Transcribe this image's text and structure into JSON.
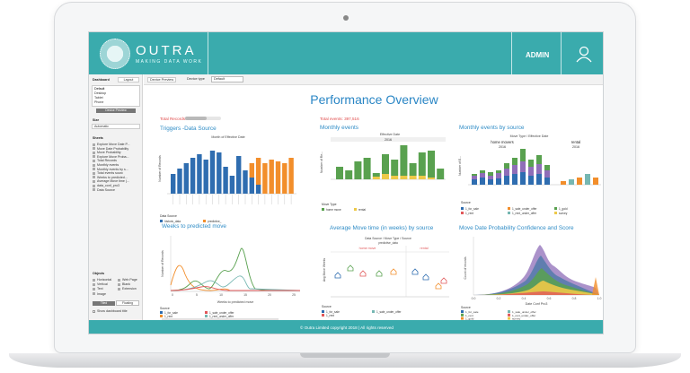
{
  "brand": {
    "name": "OUTRA",
    "tagline": "MAKING DATA WORK"
  },
  "header": {
    "user": "ADMIN"
  },
  "sidebar": {
    "dashboard_label": "Dashboard",
    "layout_label": "Layout",
    "devices": [
      "Default",
      "Desktop",
      "Tablet",
      "Phone"
    ],
    "device_preview": "Device Preview",
    "size_label": "Size",
    "size_value": "Automatic",
    "sheets_label": "Sheets",
    "sheets": [
      "Explore Move Date P...",
      "Move Date Probability",
      "Move Probability",
      "Explore Move Proba...",
      "Total Records",
      "Monthly events",
      "Monthly events by s...",
      "Total events sourc",
      "Weeks to predicted...",
      "Average Move time (...",
      "data_conf_pro3",
      "Data Source"
    ],
    "objects_label": "Objects",
    "objects": [
      "Horizontal",
      "Web Page",
      "Vertical",
      "Blank",
      "Text",
      "Extension",
      "Image"
    ],
    "tiled": "Tiled",
    "floating": "Floating",
    "show_title": "Show dashboard title"
  },
  "toolbar": {
    "device_preview": "Device Preview",
    "device_type_label": "Device type",
    "device_type_value": "Default"
  },
  "main": {
    "title": "Performance Overview",
    "total_records": "Total Records:",
    "total_events": "Total events: 397,516"
  },
  "charts": {
    "triggers": {
      "title": "Triggers -Data Source",
      "sub": "Month of Effective Date",
      "legend_title": "Data Source",
      "legend": [
        "historic_data",
        "predictive_"
      ]
    },
    "monthly": {
      "title": "Monthly events",
      "sub": "Effective Date",
      "year": "2016",
      "legend_title": "Move Type",
      "legend": [
        "home move",
        "rental"
      ]
    },
    "by_source": {
      "title": "Monthly events by source",
      "sub": "Move Type / Effective Date",
      "groups": [
        "home movers",
        "rental"
      ],
      "years": [
        "2016",
        "2016"
      ],
      "legend_title": "Source",
      "legend": [
        "1_for_sale",
        "1_sale_under_offer",
        "1_gold",
        "1_rent",
        "1_rent_under_offer",
        "survey"
      ]
    },
    "weeks": {
      "title": "Weeks to predicted move",
      "xlabel": "Weeks to predicted move",
      "ylabel": "Number of Records",
      "legend_title": "Source",
      "legend": [
        "1_for_sale",
        "1_sale_under_offer",
        "1_rent",
        "1_rent_under_offer"
      ],
      "xticks": [
        "0",
        "5",
        "10",
        "15",
        "20",
        "25"
      ]
    },
    "avgmove": {
      "title": "Average Move time (in weeks) by source",
      "sub": "Data Source / Move Type / Source",
      "sub2": "predictive_data",
      "groups": [
        "home move",
        "rental"
      ],
      "ylabel": "Avg Move Weeks",
      "legend_title": "Source",
      "legend": [
        "1_for_sale",
        "1_sale_under_offer",
        "1_rent"
      ]
    },
    "prob": {
      "title": "Move Date Probability Confidence and Score",
      "xlabel": "Date Conf Pro3",
      "ylabel": "Count of records",
      "xticks": [
        "0.0",
        "0.2",
        "0.4",
        "0.6",
        "0.8",
        "1.0"
      ],
      "legend_title": "Source",
      "legend": [
        "1_for_sale",
        "1_sale_under_offer",
        "1_rent",
        "1_rent_under_offer",
        "1_gold",
        "survey"
      ]
    }
  },
  "footer": {
    "text": "© Outra Limited copyright 2018   |   All rights reserved"
  },
  "colors": {
    "teal": "#3aabad",
    "blue": "#2f6db0",
    "orange": "#f28e2b",
    "green": "#59a14f",
    "yellow": "#edc948",
    "red": "#e15759",
    "cyan": "#76b7b2",
    "purple": "#8f6eb8"
  }
}
